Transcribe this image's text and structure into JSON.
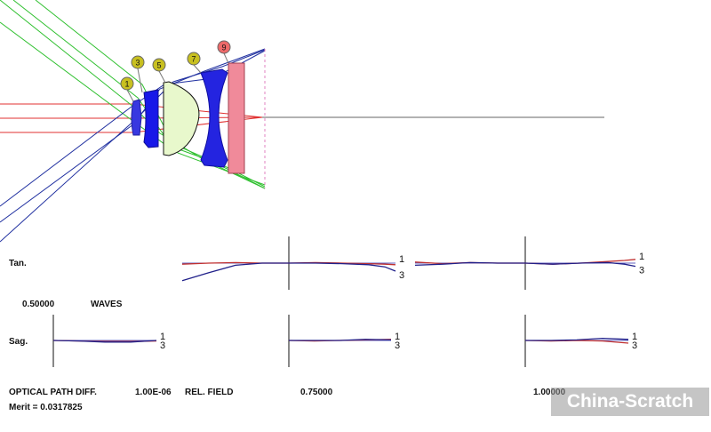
{
  "labels": {
    "tan": "Tan.",
    "sag": "Sag.",
    "scale_value": "0.50000",
    "scale_unit": "WAVES",
    "opd": "OPTICAL PATH DIFF.",
    "opd_value": "1.00E-06",
    "rel_field": "REL. FIELD",
    "field_075": "0.75000",
    "field_100": "1.00000",
    "merit": "Merit = 0.0317825",
    "watermark": "China-Scratch"
  },
  "lens": {
    "surface_labels": [
      "1",
      "3",
      "5",
      "7",
      "9"
    ],
    "colors": {
      "label_yellow": "#c8c020",
      "label_red": "#ee6a6a",
      "element_blue": "#2020e0",
      "element_green": "#e6f8c8",
      "element_pink": "#f08a9a",
      "ray_red": "#e03030",
      "ray_green": "#30c030",
      "ray_blue": "#2030a0",
      "axis": "#555555"
    }
  },
  "chart_data": {
    "type": "line",
    "xlabel": "",
    "ylabel": "",
    "scale_waves": 0.5,
    "curve_labels": [
      "1",
      "3"
    ],
    "plots": [
      {
        "row": "Tan.",
        "field": 0.75,
        "series": [
          {
            "name": "1",
            "color": "#c03030",
            "x": [
              -1,
              -0.75,
              -0.5,
              -0.25,
              0,
              0.25,
              0.5,
              0.75,
              0.9,
              1
            ],
            "y": [
              -0.02,
              0.0,
              0.01,
              0.0,
              0,
              0.01,
              0.0,
              -0.01,
              -0.02,
              -0.03
            ]
          },
          {
            "name": "3",
            "color": "#20208a",
            "x": [
              -1,
              -0.75,
              -0.5,
              -0.25,
              0,
              0.25,
              0.5,
              0.75,
              0.9,
              1
            ],
            "y": [
              -0.33,
              -0.18,
              -0.04,
              0.0,
              0,
              0.0,
              -0.01,
              -0.03,
              -0.07,
              -0.15
            ]
          }
        ]
      },
      {
        "row": "Tan.",
        "field": 1.0,
        "series": [
          {
            "name": "1",
            "color": "#c03030",
            "x": [
              -1,
              -0.75,
              -0.5,
              -0.25,
              0,
              0.25,
              0.5,
              0.75,
              0.9,
              1
            ],
            "y": [
              0.02,
              -0.01,
              0.01,
              0.0,
              0,
              -0.02,
              0.0,
              0.03,
              0.05,
              0.07
            ]
          },
          {
            "name": "3",
            "color": "#20208a",
            "x": [
              -1,
              -0.75,
              -0.5,
              -0.25,
              0,
              0.25,
              0.5,
              0.75,
              0.9,
              1
            ],
            "y": [
              -0.04,
              -0.02,
              0.01,
              0.0,
              0,
              -0.02,
              0.0,
              0.01,
              -0.02,
              -0.06
            ]
          }
        ]
      },
      {
        "row": "Sag.",
        "field": 0.5,
        "series": [
          {
            "name": "1",
            "color": "#c03030",
            "x": [
              0,
              0.25,
              0.5,
              0.75,
              1
            ],
            "y": [
              0,
              -0.01,
              -0.02,
              -0.02,
              -0.01
            ]
          },
          {
            "name": "3",
            "color": "#20208a",
            "x": [
              0,
              0.25,
              0.5,
              0.75,
              1
            ],
            "y": [
              0,
              -0.01,
              -0.03,
              -0.03,
              0.0
            ]
          }
        ]
      },
      {
        "row": "Sag.",
        "field": 0.75,
        "series": [
          {
            "name": "1",
            "color": "#c03030",
            "x": [
              0,
              0.25,
              0.5,
              0.75,
              1
            ],
            "y": [
              0,
              -0.01,
              0.0,
              0.01,
              0.02
            ]
          },
          {
            "name": "3",
            "color": "#20208a",
            "x": [
              0,
              0.25,
              0.5,
              0.75,
              1
            ],
            "y": [
              0,
              0.0,
              0.0,
              0.02,
              0.01
            ]
          }
        ]
      },
      {
        "row": "Sag.",
        "field": 1.0,
        "series": [
          {
            "name": "1",
            "color": "#c03030",
            "x": [
              0,
              0.25,
              0.5,
              0.75,
              1
            ],
            "y": [
              0,
              -0.01,
              0.0,
              -0.01,
              -0.05
            ]
          },
          {
            "name": "3",
            "color": "#20208a",
            "x": [
              0,
              0.25,
              0.5,
              0.75,
              1
            ],
            "y": [
              0,
              0.0,
              0.01,
              0.04,
              0.02
            ]
          }
        ]
      }
    ]
  }
}
